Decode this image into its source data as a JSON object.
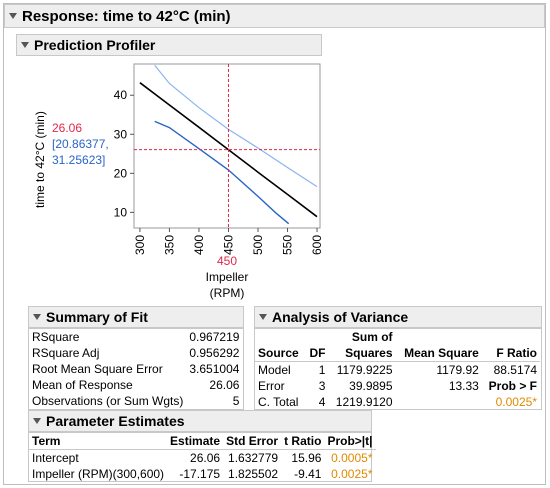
{
  "response_title": "Response: time to 42°C (min)",
  "profiler": {
    "title": "Prediction Profiler",
    "y_axis_label": "time to 42°C (min)",
    "predicted_value": "26.06",
    "ci_line1": "[20.86377,",
    "ci_line2": "31.25623]",
    "x_current_value": "450",
    "x_label_line1": "Impeller",
    "x_label_line2": "(RPM)",
    "x_ticks": [
      "300",
      "350",
      "400",
      "450",
      "500",
      "550",
      "600"
    ],
    "y_ticks": [
      "40",
      "30",
      "20",
      "10"
    ],
    "colors": {
      "prediction": "#000000",
      "upper_ci": "#8ab4f0",
      "lower_ci": "#2a64c8",
      "crosshair": "#e0284a"
    }
  },
  "chart_data": {
    "type": "line",
    "xlabel": "Impeller (RPM)",
    "ylabel": "time to 42°C (min)",
    "xlim": [
      290,
      605
    ],
    "ylim": [
      6,
      48
    ],
    "current_x": 450,
    "current_y": 26.06,
    "series": [
      {
        "x": [
          300,
          350,
          400,
          450,
          500,
          550,
          600
        ],
        "y": [
          43.2,
          37.5,
          31.8,
          26.06,
          20.3,
          14.6,
          8.9
        ]
      },
      {
        "x": [
          325,
          350,
          400,
          450,
          500,
          550,
          600
        ],
        "y": [
          47.7,
          43.0,
          36.8,
          31.26,
          26.5,
          21.5,
          16.6
        ]
      },
      {
        "x": [
          325,
          350,
          400,
          450,
          500,
          530,
          552
        ],
        "y": [
          33.3,
          31.7,
          26.3,
          20.86,
          14.1,
          9.9,
          7.1
        ]
      }
    ]
  },
  "summary_of_fit": {
    "title": "Summary of Fit",
    "rows": [
      {
        "label": "RSquare",
        "value": "0.967219"
      },
      {
        "label": "RSquare Adj",
        "value": "0.956292"
      },
      {
        "label": "Root Mean Square Error",
        "value": "3.651004"
      },
      {
        "label": "Mean of Response",
        "value": "26.06"
      },
      {
        "label": "Observations (or Sum Wgts)",
        "value": "5"
      }
    ]
  },
  "anova": {
    "title": "Analysis of Variance",
    "headers": {
      "source": "Source",
      "df": "DF",
      "ss_line1": "Sum of",
      "ss_line2": "Squares",
      "ms": "Mean Square",
      "f": "F Ratio"
    },
    "rows": [
      {
        "source": "Model",
        "df": "1",
        "ss": "1179.9225",
        "ms": "1179.92",
        "f": "88.5174"
      },
      {
        "source": "Error",
        "df": "3",
        "ss": "39.9895",
        "ms": "13.33",
        "f": "Prob > F"
      },
      {
        "source": "C. Total",
        "df": "4",
        "ss": "1219.9120",
        "ms": "",
        "f": "0.0025*"
      }
    ]
  },
  "parameter_estimates": {
    "title": "Parameter Estimates",
    "headers": {
      "term": "Term",
      "estimate": "Estimate",
      "std_error": "Std Error",
      "t_ratio": "t Ratio",
      "prob": "Prob>|t|"
    },
    "rows": [
      {
        "term": "Intercept",
        "estimate": "26.06",
        "std_error": "1.632779",
        "t_ratio": "15.96",
        "prob": "0.0005*"
      },
      {
        "term": "Impeller (RPM)(300,600)",
        "estimate": "-17.175",
        "std_error": "1.825502",
        "t_ratio": "-9.41",
        "prob": "0.0025*"
      }
    ]
  }
}
